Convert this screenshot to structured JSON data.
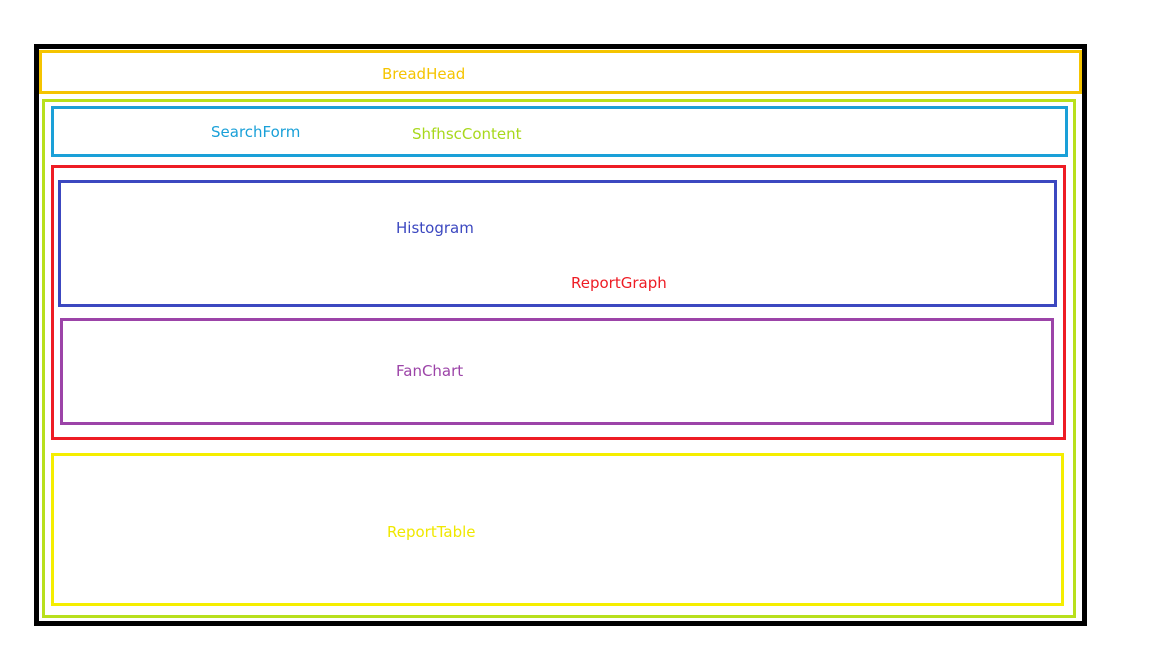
{
  "regions": {
    "bread_head": {
      "label": "BreadHead",
      "color": "#f5c400"
    },
    "content": {
      "label": "ShfhscContent",
      "color": "#a8d81c"
    },
    "search_form": {
      "label": "SearchForm",
      "color": "#1aa0d8"
    },
    "report_graph": {
      "label": "ReportGraph",
      "color": "#ee1c24"
    },
    "histogram": {
      "label": "Histogram",
      "color": "#3c48c0"
    },
    "fan_chart": {
      "label": "FanChart",
      "color": "#9c44a8"
    },
    "report_table": {
      "label": "ReportTable",
      "color": "#f0e800"
    }
  },
  "frame_color": "#000000"
}
